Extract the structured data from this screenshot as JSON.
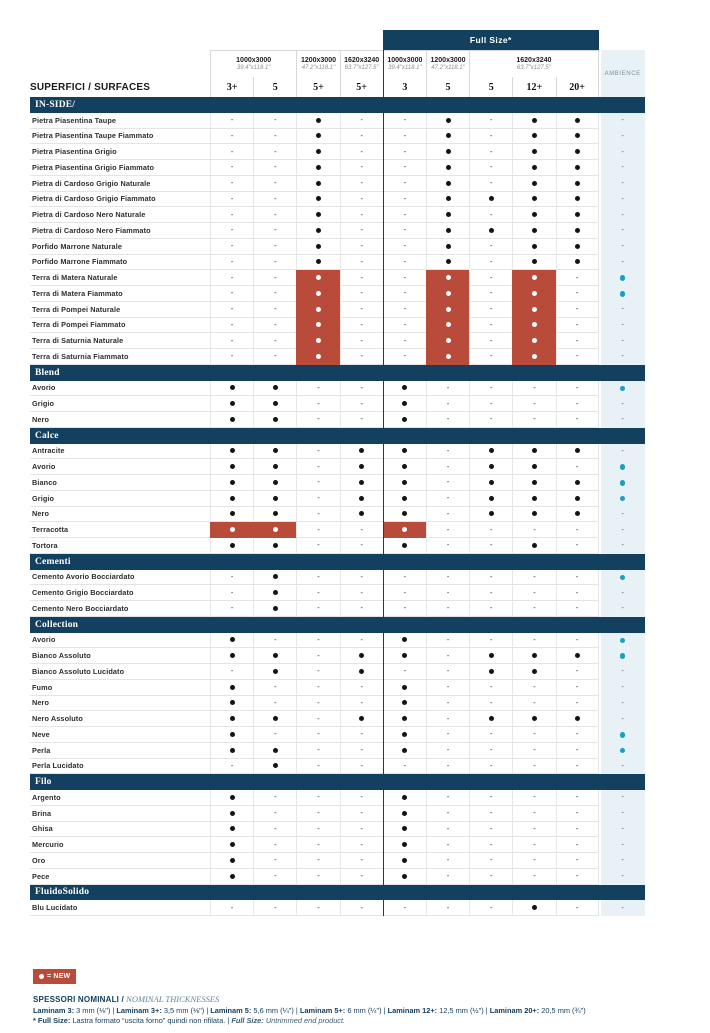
{
  "colors": {
    "navy": "#14405f",
    "red": "#b84b3a",
    "teal": "#189fc2",
    "ambience_bg": "#e8f1f6"
  },
  "header": {
    "title": "SUPERFICI / SURFACES",
    "full_size_label": "Full Size*",
    "ambience_label": "AMBIENCE",
    "groups": [
      {
        "size": "1000x3000",
        "inches": "39.4\"x118.1\"",
        "span": 2
      },
      {
        "size": "1200x3000",
        "inches": "47.2\"x118.1\"",
        "span": 1
      },
      {
        "size": "1620x3240",
        "inches": "63.7\"x127.5\"",
        "span": 1
      },
      {
        "size": "1000x3000",
        "inches": "39.4\"x118.1\"",
        "span": 1
      },
      {
        "size": "1200x3000",
        "inches": "47.2\"x118.1\"",
        "span": 1
      },
      {
        "size": "1620x3240",
        "inches": "63.7\"x127.5\"",
        "span": 3
      }
    ],
    "thicknesses": [
      "3+",
      "5",
      "5+",
      "5+",
      "3",
      "5",
      "5",
      "12+",
      "20+"
    ]
  },
  "sections": [
    {
      "name": "IN-SIDE/",
      "rows": [
        {
          "name": "Pietra Piasentina Taupe",
          "cells": [
            "-",
            "-",
            "dot",
            "-",
            "-",
            "dot",
            "-",
            "dot",
            "dot"
          ],
          "ambience": "-"
        },
        {
          "name": "Pietra Piasentina Taupe Fiammato",
          "cells": [
            "-",
            "-",
            "dot",
            "-",
            "-",
            "dot",
            "-",
            "dot",
            "dot"
          ],
          "ambience": "-"
        },
        {
          "name": "Pietra Piasentina Grigio",
          "cells": [
            "-",
            "-",
            "dot",
            "-",
            "-",
            "dot",
            "-",
            "dot",
            "dot"
          ],
          "ambience": "-"
        },
        {
          "name": "Pietra Piasentina Grigio Fiammato",
          "cells": [
            "-",
            "-",
            "dot",
            "-",
            "-",
            "dot",
            "-",
            "dot",
            "dot"
          ],
          "ambience": "-"
        },
        {
          "name": "Pietra di Cardoso Grigio Naturale",
          "cells": [
            "-",
            "-",
            "dot",
            "-",
            "-",
            "dot",
            "-",
            "dot",
            "dot"
          ],
          "ambience": "-"
        },
        {
          "name": "Pietra di Cardoso Grigio Fiammato",
          "cells": [
            "-",
            "-",
            "dot",
            "-",
            "-",
            "dot",
            "dot",
            "dot",
            "dot"
          ],
          "ambience": "-"
        },
        {
          "name": "Pietra di Cardoso Nero Naturale",
          "cells": [
            "-",
            "-",
            "dot",
            "-",
            "-",
            "dot",
            "-",
            "dot",
            "dot"
          ],
          "ambience": "-"
        },
        {
          "name": "Pietra di Cardoso Nero Fiammato",
          "cells": [
            "-",
            "-",
            "dot",
            "-",
            "-",
            "dot",
            "dot",
            "dot",
            "dot"
          ],
          "ambience": "-"
        },
        {
          "name": "Porfido Marrone Naturale",
          "cells": [
            "-",
            "-",
            "dot",
            "-",
            "-",
            "dot",
            "-",
            "dot",
            "dot"
          ],
          "ambience": "-"
        },
        {
          "name": "Porfido Marrone Fiammato",
          "cells": [
            "-",
            "-",
            "dot",
            "-",
            "-",
            "dot",
            "-",
            "dot",
            "dot"
          ],
          "ambience": "-"
        },
        {
          "name": "Terra di Matera Naturale",
          "cells": [
            "-",
            "-",
            "new",
            "-",
            "-",
            "new",
            "-",
            "new",
            "-"
          ],
          "ambience": "dot"
        },
        {
          "name": "Terra di Matera Fiammato",
          "cells": [
            "-",
            "-",
            "new",
            "-",
            "-",
            "new",
            "-",
            "new",
            "-"
          ],
          "ambience": "dot"
        },
        {
          "name": "Terra di Pompei Naturale",
          "cells": [
            "-",
            "-",
            "new",
            "-",
            "-",
            "new",
            "-",
            "new",
            "-"
          ],
          "ambience": "-"
        },
        {
          "name": "Terra di Pompei Fiammato",
          "cells": [
            "-",
            "-",
            "new",
            "-",
            "-",
            "new",
            "-",
            "new",
            "-"
          ],
          "ambience": "-"
        },
        {
          "name": "Terra di Saturnia Naturale",
          "cells": [
            "-",
            "-",
            "new",
            "-",
            "-",
            "new",
            "-",
            "new",
            "-"
          ],
          "ambience": "-"
        },
        {
          "name": "Terra di Saturnia Fiammato",
          "cells": [
            "-",
            "-",
            "new",
            "-",
            "-",
            "new",
            "-",
            "new",
            "-"
          ],
          "ambience": "-"
        }
      ]
    },
    {
      "name": "Blend",
      "rows": [
        {
          "name": "Avorio",
          "cells": [
            "dot",
            "dot",
            "-",
            "-",
            "dot",
            "-",
            "-",
            "-",
            "-"
          ],
          "ambience": "dot"
        },
        {
          "name": "Grigio",
          "cells": [
            "dot",
            "dot",
            "-",
            "-",
            "dot",
            "-",
            "-",
            "-",
            "-"
          ],
          "ambience": "-"
        },
        {
          "name": "Nero",
          "cells": [
            "dot",
            "dot",
            "-",
            "-",
            "dot",
            "-",
            "-",
            "-",
            "-"
          ],
          "ambience": "-"
        }
      ]
    },
    {
      "name": "Calce",
      "rows": [
        {
          "name": "Antracite",
          "cells": [
            "dot",
            "dot",
            "-",
            "dot",
            "dot",
            "-",
            "dot",
            "dot",
            "dot"
          ],
          "ambience": "-"
        },
        {
          "name": "Avorio",
          "cells": [
            "dot",
            "dot",
            "-",
            "dot",
            "dot",
            "-",
            "dot",
            "dot",
            "-"
          ],
          "ambience": "dot"
        },
        {
          "name": "Bianco",
          "cells": [
            "dot",
            "dot",
            "-",
            "dot",
            "dot",
            "-",
            "dot",
            "dot",
            "dot"
          ],
          "ambience": "dot"
        },
        {
          "name": "Grigio",
          "cells": [
            "dot",
            "dot",
            "-",
            "dot",
            "dot",
            "-",
            "dot",
            "dot",
            "dot"
          ],
          "ambience": "dot"
        },
        {
          "name": "Nero",
          "cells": [
            "dot",
            "dot",
            "-",
            "dot",
            "dot",
            "-",
            "dot",
            "dot",
            "dot"
          ],
          "ambience": "-"
        },
        {
          "name": "Terracotta",
          "cells": [
            "new",
            "new",
            "-",
            "-",
            "new",
            "-",
            "-",
            "-",
            "-"
          ],
          "ambience": "-"
        },
        {
          "name": "Tortora",
          "cells": [
            "dot",
            "dot",
            "-",
            "-",
            "dot",
            "-",
            "-",
            "dot",
            "-"
          ],
          "ambience": "-"
        }
      ]
    },
    {
      "name": "Cementi",
      "rows": [
        {
          "name": "Cemento Avorio Bocciardato",
          "cells": [
            "-",
            "dot",
            "-",
            "-",
            "-",
            "-",
            "-",
            "-",
            "-"
          ],
          "ambience": "dot"
        },
        {
          "name": "Cemento Grigio Bocciardato",
          "cells": [
            "-",
            "dot",
            "-",
            "-",
            "-",
            "-",
            "-",
            "-",
            "-"
          ],
          "ambience": "-"
        },
        {
          "name": "Cemento Nero Bocciardato",
          "cells": [
            "-",
            "dot",
            "-",
            "-",
            "-",
            "-",
            "-",
            "-",
            "-"
          ],
          "ambience": "-"
        }
      ]
    },
    {
      "name": "Collection",
      "rows": [
        {
          "name": "Avorio",
          "cells": [
            "dot",
            "-",
            "-",
            "-",
            "dot",
            "-",
            "-",
            "-",
            "-"
          ],
          "ambience": "dot"
        },
        {
          "name": "Bianco Assoluto",
          "cells": [
            "dot",
            "dot",
            "-",
            "dot",
            "dot",
            "-",
            "dot",
            "dot",
            "dot"
          ],
          "ambience": "dot"
        },
        {
          "name": "Bianco Assoluto Lucidato",
          "cells": [
            "-",
            "dot",
            "-",
            "dot",
            "-",
            "-",
            "dot",
            "dot",
            "-"
          ],
          "ambience": "-"
        },
        {
          "name": "Fumo",
          "cells": [
            "dot",
            "-",
            "-",
            "-",
            "dot",
            "-",
            "-",
            "-",
            "-"
          ],
          "ambience": "-"
        },
        {
          "name": "Nero",
          "cells": [
            "dot",
            "-",
            "-",
            "-",
            "dot",
            "-",
            "-",
            "-",
            "-"
          ],
          "ambience": "-"
        },
        {
          "name": "Nero Assoluto",
          "cells": [
            "dot",
            "dot",
            "-",
            "dot",
            "dot",
            "-",
            "dot",
            "dot",
            "dot"
          ],
          "ambience": "-"
        },
        {
          "name": "Neve",
          "cells": [
            "dot",
            "-",
            "-",
            "-",
            "dot",
            "-",
            "-",
            "-",
            "-"
          ],
          "ambience": "dot"
        },
        {
          "name": "Perla",
          "cells": [
            "dot",
            "dot",
            "-",
            "-",
            "dot",
            "-",
            "-",
            "-",
            "-"
          ],
          "ambience": "dot"
        },
        {
          "name": "Perla Lucidato",
          "cells": [
            "-",
            "dot",
            "-",
            "-",
            "-",
            "-",
            "-",
            "-",
            "-"
          ],
          "ambience": "-"
        }
      ]
    },
    {
      "name": "Filo",
      "rows": [
        {
          "name": "Argento",
          "cells": [
            "dot",
            "-",
            "-",
            "-",
            "dot",
            "-",
            "-",
            "-",
            "-"
          ],
          "ambience": "-"
        },
        {
          "name": "Brina",
          "cells": [
            "dot",
            "-",
            "-",
            "-",
            "dot",
            "-",
            "-",
            "-",
            "-"
          ],
          "ambience": "-"
        },
        {
          "name": "Ghisa",
          "cells": [
            "dot",
            "-",
            "-",
            "-",
            "dot",
            "-",
            "-",
            "-",
            "-"
          ],
          "ambience": "-"
        },
        {
          "name": "Mercurio",
          "cells": [
            "dot",
            "-",
            "-",
            "-",
            "dot",
            "-",
            "-",
            "-",
            "-"
          ],
          "ambience": "-"
        },
        {
          "name": "Oro",
          "cells": [
            "dot",
            "-",
            "-",
            "-",
            "dot",
            "-",
            "-",
            "-",
            "-"
          ],
          "ambience": "-"
        },
        {
          "name": "Pece",
          "cells": [
            "dot",
            "-",
            "-",
            "-",
            "dot",
            "-",
            "-",
            "-",
            "-"
          ],
          "ambience": "-"
        }
      ]
    },
    {
      "name": "FluidoSolido",
      "rows": [
        {
          "name": "Blu Lucidato",
          "cells": [
            "-",
            "-",
            "-",
            "-",
            "-",
            "-",
            "-",
            "dot",
            "-"
          ],
          "ambience": "-"
        }
      ]
    }
  ],
  "legend": {
    "dot_symbol": "●",
    "label": "= NEW"
  },
  "footer": {
    "heading_bold": "SPESSORI NOMINALI /",
    "heading_italic": "NOMINAL THICKNESSES",
    "thickness_items": [
      {
        "label": "Laminam 3:",
        "value": "3 mm (⅛\")"
      },
      {
        "label": "Laminam 3+:",
        "value": "3,5 mm (⅛\")"
      },
      {
        "label": "Laminam 5:",
        "value": "5,6 mm (¼\")"
      },
      {
        "label": "Laminam 5+:",
        "value": "6 mm (¼\")"
      },
      {
        "label": "Laminam 12+:",
        "value": "12,5 mm (½\")"
      },
      {
        "label": "Laminam 20+:",
        "value": "20,5 mm (¾\")"
      }
    ],
    "separator": "|",
    "note_bold": "* Full Size:",
    "note_regular": "Lastra formato “uscita forno” quindi non rifilata.",
    "note_italic_bold": "Full Size:",
    "note_italic": "Untrimmed end product."
  }
}
